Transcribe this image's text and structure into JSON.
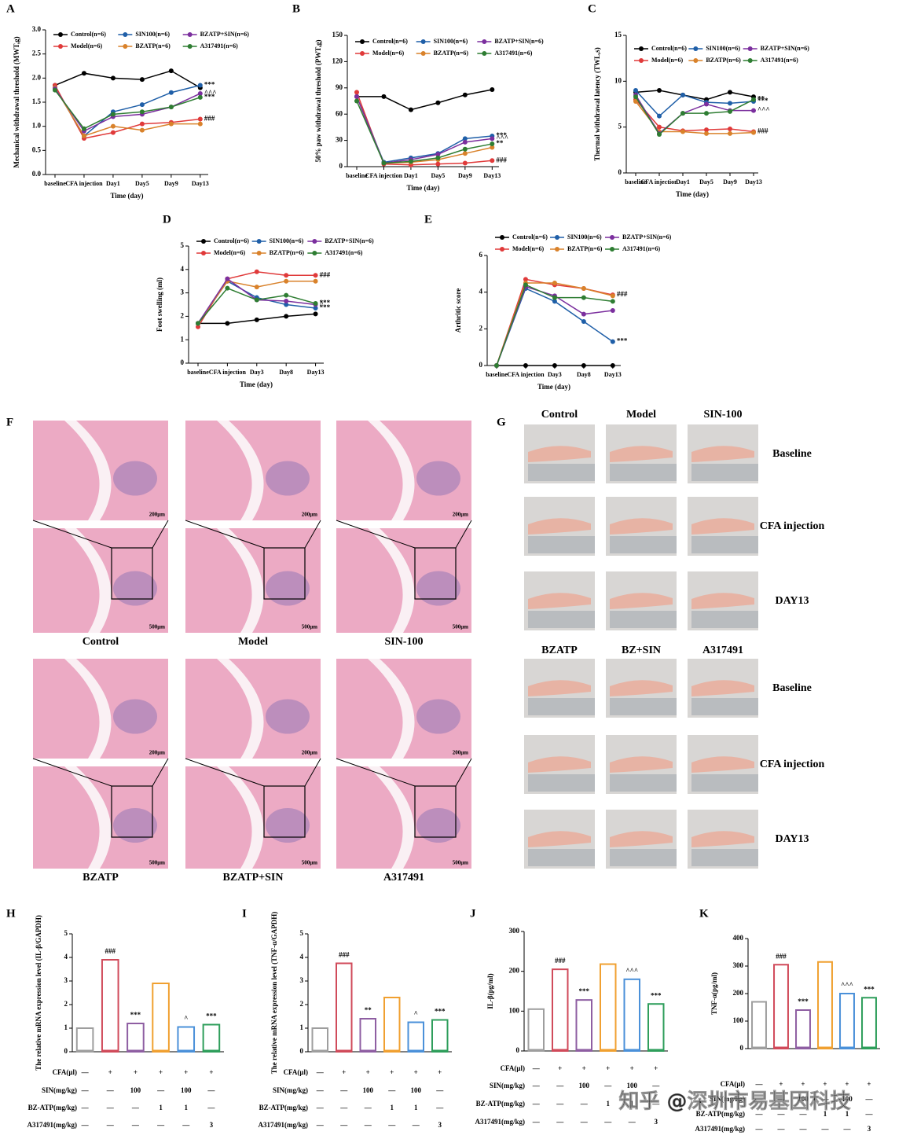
{
  "chart_data": [
    {
      "type": "line",
      "label": "A",
      "ylabel": "Mechanical withdrawal threshold (MWT,g)",
      "xlabel": "Time (day)",
      "categories": [
        "baseline",
        "CFA injection",
        "Day1",
        "Day5",
        "Day9",
        "Day13"
      ],
      "ylim": [
        0,
        3
      ],
      "yticks": [
        {
          "value": 0,
          "label": "0.0"
        },
        0.5,
        {
          "value": 1,
          "label": "1.0"
        },
        1.5,
        {
          "value": 2,
          "label": "2.0"
        },
        2.5,
        {
          "value": 3,
          "label": "3.0"
        }
      ],
      "series": [
        {
          "name": "Control(n=6)",
          "color": "#000000",
          "values": [
            1.85,
            2.1,
            2.0,
            1.97,
            2.15,
            1.8
          ]
        },
        {
          "name": "Model(n=6)",
          "color": "#e03a3a",
          "values": [
            1.85,
            0.75,
            0.87,
            1.05,
            1.08,
            1.15
          ],
          "end_label": "###"
        },
        {
          "name": "SIN100(n=6)",
          "color": "#1f5fa8",
          "values": [
            1.8,
            0.8,
            1.3,
            1.45,
            1.7,
            1.85
          ],
          "end_label": "***"
        },
        {
          "name": "BZATP(n=6)",
          "color": "#d9822b",
          "values": [
            1.8,
            0.8,
            1.0,
            0.92,
            1.05,
            1.05
          ]
        },
        {
          "name": "BZATP+SIN(n=6)",
          "color": "#7b2f9e",
          "values": [
            1.78,
            0.9,
            1.2,
            1.25,
            1.4,
            1.68
          ],
          "end_label": "^^^"
        },
        {
          "name": "A317491(n=6)",
          "color": "#2e7d32",
          "values": [
            1.75,
            0.95,
            1.25,
            1.3,
            1.4,
            1.6
          ],
          "end_label": "***"
        }
      ]
    },
    {
      "type": "line",
      "label": "B",
      "ylabel": "50% paw withdrawal threshold (PWT,g)",
      "xlabel": "Time (day)",
      "categories": [
        "baseline",
        "CFA injection",
        "Day1",
        "Day5",
        "Day9",
        "Day13"
      ],
      "ylim": [
        0,
        150
      ],
      "yticks": [
        0,
        30,
        60,
        90,
        120,
        150
      ],
      "series": [
        {
          "name": "Control(n=6)",
          "color": "#000000",
          "values": [
            80,
            80,
            65,
            73,
            82,
            88
          ]
        },
        {
          "name": "Model(n=6)",
          "color": "#e03a3a",
          "values": [
            85,
            3,
            2,
            3,
            4,
            7
          ],
          "end_label": "###"
        },
        {
          "name": "SIN100(n=6)",
          "color": "#1f5fa8",
          "values": [
            80,
            5,
            10,
            15,
            32,
            35
          ],
          "end_label": "***"
        },
        {
          "name": "BZATP(n=6)",
          "color": "#d9822b",
          "values": [
            80,
            4,
            5,
            8,
            15,
            22
          ]
        },
        {
          "name": "BZATP+SIN(n=6)",
          "color": "#7b2f9e",
          "values": [
            80,
            4,
            8,
            14,
            28,
            32
          ],
          "end_label": "^^^"
        },
        {
          "name": "A317491(n=6)",
          "color": "#2e7d32",
          "values": [
            75,
            4,
            6,
            10,
            20,
            26
          ],
          "end_label": "**"
        }
      ]
    },
    {
      "type": "line",
      "label": "C",
      "ylabel": "Thermal withdrawal latency (TWL,s)",
      "xlabel": "Time (day)",
      "categories": [
        "baseline",
        "CFA injection",
        "Day1",
        "Day5",
        "Day9",
        "Day13"
      ],
      "ylim": [
        0,
        15
      ],
      "yticks": [
        0,
        5,
        10,
        15
      ],
      "series": [
        {
          "name": "Control(n=6)",
          "color": "#000000",
          "values": [
            8.8,
            9.0,
            8.5,
            8.0,
            8.8,
            8.3
          ]
        },
        {
          "name": "Model(n=6)",
          "color": "#e03a3a",
          "values": [
            8.0,
            5.0,
            4.6,
            4.7,
            4.8,
            4.5
          ],
          "end_label": "###"
        },
        {
          "name": "SIN100(n=6)",
          "color": "#1f5fa8",
          "values": [
            9.0,
            6.2,
            8.5,
            7.7,
            7.6,
            7.8
          ],
          "end_label": "***"
        },
        {
          "name": "BZATP(n=6)",
          "color": "#d9822b",
          "values": [
            7.8,
            4.5,
            4.5,
            4.3,
            4.3,
            4.4
          ]
        },
        {
          "name": "BZATP+SIN(n=6)",
          "color": "#7b2f9e",
          "values": [
            8.5,
            4.3,
            6.5,
            7.5,
            6.8,
            6.8
          ],
          "end_label": "^^^"
        },
        {
          "name": "A317491(n=6)",
          "color": "#2e7d32",
          "values": [
            8.3,
            4.2,
            6.5,
            6.5,
            6.7,
            8.0
          ],
          "end_label": "**"
        }
      ]
    },
    {
      "type": "line",
      "label": "D",
      "ylabel": "Foot swelling (ml)",
      "xlabel": "Time (day)",
      "categories": [
        "baseline",
        "CFA injection",
        "Day3",
        "Day8",
        "Day13"
      ],
      "ylim": [
        0,
        5
      ],
      "yticks": [
        0,
        1,
        2,
        3,
        4,
        5
      ],
      "series": [
        {
          "name": "Control(n=6)",
          "color": "#000000",
          "values": [
            1.7,
            1.7,
            1.85,
            2.0,
            2.1
          ]
        },
        {
          "name": "Model(n=6)",
          "color": "#e03a3a",
          "values": [
            1.55,
            3.6,
            3.9,
            3.75,
            3.75
          ],
          "end_label": "###"
        },
        {
          "name": "SIN100(n=6)",
          "color": "#1f5fa8",
          "values": [
            1.7,
            3.5,
            2.8,
            2.5,
            2.35
          ],
          "end_label": "***"
        },
        {
          "name": "BZATP(n=6)",
          "color": "#d9822b",
          "values": [
            1.7,
            3.5,
            3.25,
            3.5,
            3.5
          ]
        },
        {
          "name": "BZATP+SIN(n=6)",
          "color": "#7b2f9e",
          "values": [
            1.7,
            3.6,
            2.7,
            2.65,
            2.5
          ],
          "end_label": "^"
        },
        {
          "name": "A317491(n=6)",
          "color": "#2e7d32",
          "values": [
            1.7,
            3.2,
            2.7,
            2.9,
            2.55
          ],
          "end_label": "***"
        }
      ]
    },
    {
      "type": "line",
      "label": "E",
      "ylabel": "Arthritic score",
      "xlabel": "Time (day)",
      "categories": [
        "baseline",
        "CFA injection",
        "Day3",
        "Day8",
        "Day13"
      ],
      "ylim": [
        0,
        6
      ],
      "yticks": [
        0,
        2,
        4,
        6
      ],
      "series": [
        {
          "name": "Control(n=6)",
          "color": "#000000",
          "values": [
            0,
            0,
            0,
            0,
            0
          ]
        },
        {
          "name": "Model(n=6)",
          "color": "#e03a3a",
          "values": [
            0,
            4.7,
            4.4,
            4.2,
            3.85
          ],
          "end_label": "###"
        },
        {
          "name": "SIN100(n=6)",
          "color": "#1f5fa8",
          "values": [
            0,
            4.2,
            3.5,
            2.4,
            1.3
          ],
          "end_label": "***"
        },
        {
          "name": "BZATP(n=6)",
          "color": "#d9822b",
          "values": [
            0,
            4.5,
            4.5,
            4.2,
            3.8
          ]
        },
        {
          "name": "BZATP+SIN(n=6)",
          "color": "#7b2f9e",
          "values": [
            0,
            4.3,
            3.8,
            2.8,
            3.0
          ]
        },
        {
          "name": "A317491(n=6)",
          "color": "#2e7d32",
          "values": [
            0,
            4.4,
            3.7,
            3.7,
            3.5
          ]
        }
      ]
    },
    {
      "type": "bar",
      "label": "H",
      "ylabel": "The relative mRNA expression level (IL-β/GAPDH)",
      "ylim": [
        0,
        5
      ],
      "yticks": [
        0,
        1,
        2,
        3,
        4,
        5
      ],
      "values": [
        1.0,
        3.9,
        1.2,
        2.9,
        1.05,
        1.15
      ],
      "marks": [
        null,
        "###",
        "***",
        null,
        "^",
        "***"
      ],
      "colors": [
        "#9e9e9e",
        "#d04a5a",
        "#8e5ea2",
        "#f0a030",
        "#4a90d9",
        "#2e9e5b"
      ],
      "conditions": [
        {
          "name": "CFA(μl)",
          "cells": [
            "—",
            "+",
            "+",
            "+",
            "+",
            "+"
          ]
        },
        {
          "name": "SIN(mg/kg)",
          "cells": [
            "—",
            "—",
            "100",
            "—",
            "100",
            "—"
          ]
        },
        {
          "name": "BZ-ATP(mg/kg)",
          "cells": [
            "—",
            "—",
            "—",
            "1",
            "1",
            "—"
          ]
        },
        {
          "name": "A317491(mg/kg)",
          "cells": [
            "—",
            "—",
            "—",
            "—",
            "—",
            "3"
          ]
        }
      ]
    },
    {
      "type": "bar",
      "label": "I",
      "ylabel": "The relative mRNA expression level (TNF-α/GAPDH)",
      "ylim": [
        0,
        5
      ],
      "yticks": [
        0,
        1,
        2,
        3,
        4,
        5
      ],
      "values": [
        1.0,
        3.75,
        1.4,
        2.3,
        1.25,
        1.35
      ],
      "marks": [
        null,
        "###",
        "**",
        null,
        "^",
        "***"
      ],
      "colors": [
        "#9e9e9e",
        "#d04a5a",
        "#8e5ea2",
        "#f0a030",
        "#4a90d9",
        "#2e9e5b"
      ],
      "conditions": [
        {
          "name": "CFA(μl)",
          "cells": [
            "—",
            "+",
            "+",
            "+",
            "+",
            "+"
          ]
        },
        {
          "name": "SIN(mg/kg)",
          "cells": [
            "—",
            "—",
            "100",
            "—",
            "100",
            "—"
          ]
        },
        {
          "name": "BZ-ATP(mg/kg)",
          "cells": [
            "—",
            "—",
            "—",
            "1",
            "1",
            "—"
          ]
        },
        {
          "name": "A317491(mg/kg)",
          "cells": [
            "—",
            "—",
            "—",
            "—",
            "—",
            "3"
          ]
        }
      ]
    },
    {
      "type": "bar",
      "label": "J",
      "ylabel": "IL-β(pg/ml)",
      "ylim": [
        0,
        300
      ],
      "yticks": [
        0,
        100,
        200,
        300
      ],
      "values": [
        105,
        205,
        128,
        218,
        180,
        118
      ],
      "marks": [
        null,
        "###",
        "***",
        null,
        "^^^",
        "***"
      ],
      "colors": [
        "#9e9e9e",
        "#d04a5a",
        "#8e5ea2",
        "#f0a030",
        "#4a90d9",
        "#2e9e5b"
      ],
      "conditions": [
        {
          "name": "CFA(μl)",
          "cells": [
            "—",
            "+",
            "+",
            "+",
            "+",
            "+"
          ]
        },
        {
          "name": "SIN(mg/kg)",
          "cells": [
            "—",
            "—",
            "100",
            "—",
            "100",
            "—"
          ]
        },
        {
          "name": "BZ-ATP(mg/kg)",
          "cells": [
            "—",
            "—",
            "—",
            "1",
            "1",
            "—"
          ]
        },
        {
          "name": "A317491(mg/kg)",
          "cells": [
            "—",
            "—",
            "—",
            "—",
            "—",
            "3"
          ]
        }
      ]
    },
    {
      "type": "bar",
      "label": "K",
      "ylabel": "TNF-α(pg/ml)",
      "ylim": [
        0,
        400
      ],
      "yticks": [
        0,
        100,
        200,
        300,
        400
      ],
      "values": [
        170,
        305,
        140,
        315,
        200,
        185
      ],
      "marks": [
        null,
        "###",
        "***",
        null,
        "^^^",
        "***"
      ],
      "colors": [
        "#9e9e9e",
        "#d04a5a",
        "#8e5ea2",
        "#f0a030",
        "#4a90d9",
        "#2e9e5b"
      ],
      "conditions": [
        {
          "name": "CFA(μl)",
          "cells": [
            "—",
            "+",
            "+",
            "+",
            "+",
            "+"
          ]
        },
        {
          "name": "SIN(mg/kg)",
          "cells": [
            "—",
            "—",
            "100",
            "—",
            "100",
            "—"
          ]
        },
        {
          "name": "BZ-ATP(mg/kg)",
          "cells": [
            "—",
            "—",
            "—",
            "1",
            "1",
            "—"
          ]
        },
        {
          "name": "A317491(mg/kg)",
          "cells": [
            "—",
            "—",
            "—",
            "—",
            "—",
            "3"
          ]
        }
      ]
    }
  ],
  "histology": {
    "label": "F",
    "groups": [
      "Control",
      "Model",
      "SIN-100",
      "BZATP",
      "BZATP+SIN",
      "A317491"
    ],
    "scale_bars": [
      "200μm",
      "500μm"
    ]
  },
  "photos": {
    "label": "G",
    "blocks": [
      [
        "Control",
        "Model",
        "SIN-100"
      ],
      [
        "BZATP",
        "BZ+SIN",
        "A317491"
      ]
    ],
    "rows": [
      "Baseline",
      "CFA injection",
      "DAY13"
    ]
  },
  "watermark": "知乎 @深圳市易基因科技"
}
